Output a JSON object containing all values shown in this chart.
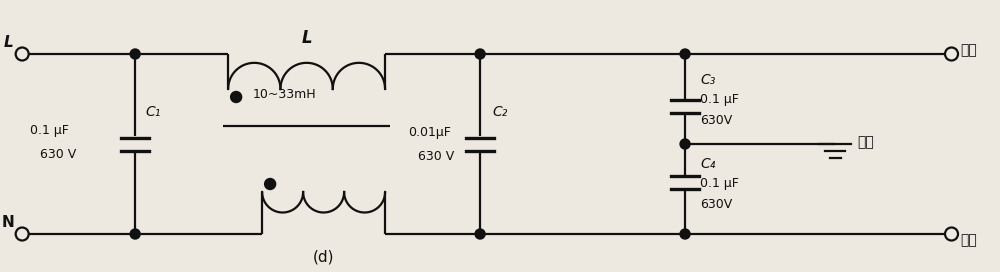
{
  "bg_color": "#ede8e0",
  "line_color": "#111111",
  "text_color": "#111111",
  "lw": 1.6,
  "fig_width": 10.0,
  "fig_height": 2.72,
  "dpi": 100,
  "labels": {
    "L_input": "L",
    "N_input": "N",
    "L_label": "L",
    "inductor_label": "10~33mH",
    "C1_label": "C₁",
    "C1_val": "0.1 μF",
    "C1_v": "630 V",
    "C2_label": "C₂",
    "C2_val": "0.01μF",
    "C2_v": "630 V",
    "C3_label": "C₃",
    "C3_val": "0.1 μF",
    "C3_v": "630V",
    "C4_label": "C₄",
    "C4_val": "0.1 μF",
    "C4_v": "630V",
    "out_top": "输出",
    "out_bot": "输出",
    "earth": "大地",
    "d_label": "(d)"
  }
}
